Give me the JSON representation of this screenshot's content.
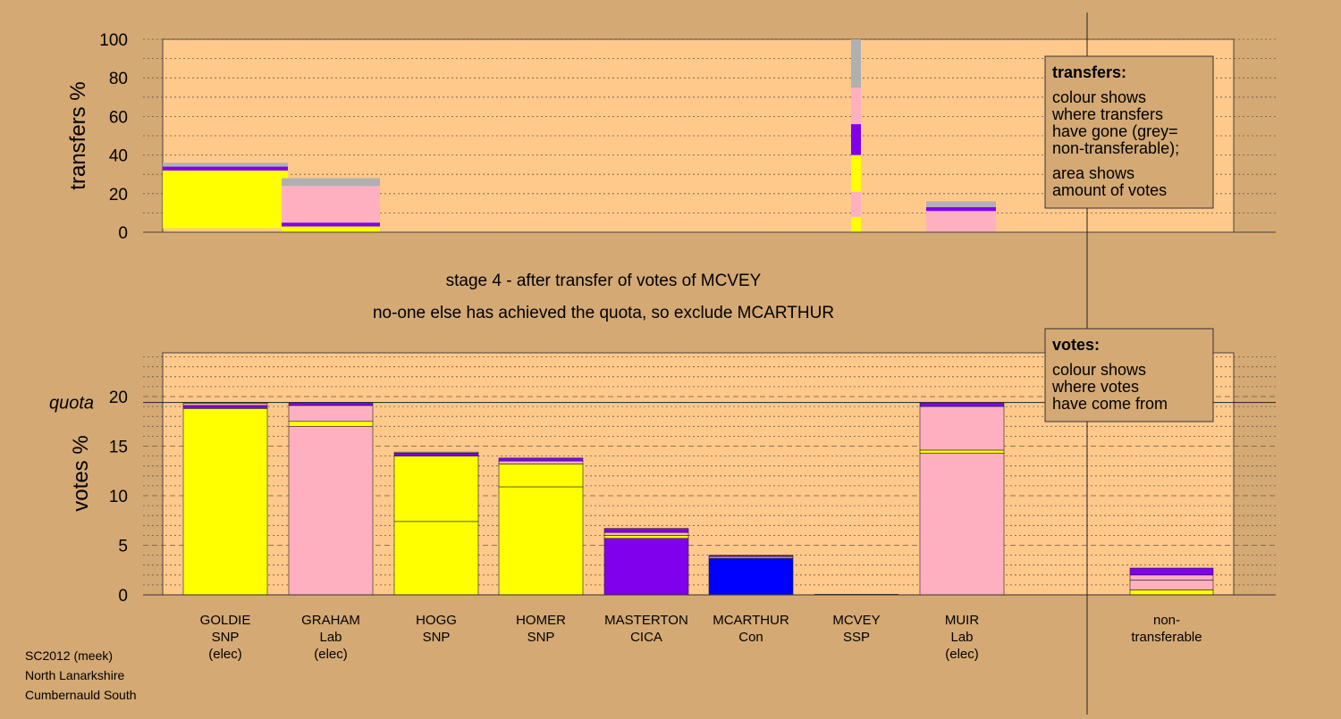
{
  "heading": {
    "stage_line": "stage 4 - after transfer of votes of MCVEY",
    "decision_line": "no-one else has achieved the quota, so exclude MCARTHUR"
  },
  "footer": {
    "lines": [
      "SC2012 (meek)",
      "North Lanarkshire",
      "Cumbernauld South"
    ]
  },
  "colors": {
    "snp_yellow": "#ffff00",
    "lab_pink": "#ffb0c0",
    "cica_purple": "#8000ee",
    "con_blue": "#0000ff",
    "grey": "#b0b0b0",
    "panel": "#ffc98c",
    "background": "#d4a974"
  },
  "chart_data": [
    {
      "type": "bar",
      "ylabel": "transfers %",
      "ylim": [
        0,
        100
      ],
      "yticks": [
        0,
        20,
        40,
        60,
        80,
        100
      ],
      "legend": {
        "title": "transfers:",
        "lines": [
          "colour shows",
          "where transfers",
          "have gone (grey=",
          "non-transferable);",
          "area shows",
          "amount of votes"
        ]
      },
      "columns": [
        {
          "candidate": "GOLDIE",
          "segments": [
            {
              "color": "yellow",
              "from": 2,
              "to": 32
            },
            {
              "color": "purple",
              "from": 32,
              "to": 34
            },
            {
              "color": "grey",
              "from": 34,
              "to": 36
            }
          ]
        },
        {
          "candidate": "GRAHAM",
          "segments": [
            {
              "color": "yellow",
              "from": 0,
              "to": 3
            },
            {
              "color": "purple",
              "from": 3,
              "to": 5
            },
            {
              "color": "pink",
              "from": 5,
              "to": 24
            },
            {
              "color": "grey",
              "from": 24,
              "to": 28
            }
          ]
        },
        {
          "candidate": "MCVEY",
          "segments": [
            {
              "color": "yellow",
              "from": 0,
              "to": 8
            },
            {
              "color": "pink",
              "from": 8,
              "to": 21
            },
            {
              "color": "yellow",
              "from": 21,
              "to": 40
            },
            {
              "color": "purple",
              "from": 40,
              "to": 56
            },
            {
              "color": "pink",
              "from": 56,
              "to": 75
            },
            {
              "color": "grey",
              "from": 75,
              "to": 100
            }
          ]
        },
        {
          "candidate": "MUIR",
          "segments": [
            {
              "color": "pink",
              "from": 0,
              "to": 11
            },
            {
              "color": "purple",
              "from": 11,
              "to": 13
            },
            {
              "color": "grey",
              "from": 13,
              "to": 16
            }
          ]
        }
      ]
    },
    {
      "type": "bar",
      "ylabel": "votes %",
      "quota_label": "quota",
      "quota": 19.4,
      "ylim": [
        0,
        25
      ],
      "yticks": [
        0,
        5,
        10,
        15,
        20
      ],
      "legend": {
        "title": "votes:",
        "lines": [
          "colour shows",
          "where votes",
          "have come from"
        ]
      },
      "categories": [
        {
          "name": "GOLDIE",
          "party": "SNP",
          "note": "(elec)",
          "segments": [
            {
              "color": "yellow",
              "from": 0,
              "to": 18.8
            },
            {
              "color": "purple",
              "from": 18.8,
              "to": 19.1
            },
            {
              "color": "pink",
              "from": 19.1,
              "to": 19.3
            },
            {
              "color": "grey",
              "from": 19.3,
              "to": 19.4
            }
          ]
        },
        {
          "name": "GRAHAM",
          "party": "Lab",
          "note": "(elec)",
          "segments": [
            {
              "color": "pink",
              "from": 0,
              "to": 17.0
            },
            {
              "color": "yellow",
              "from": 17.0,
              "to": 17.5
            },
            {
              "color": "pink",
              "from": 17.5,
              "to": 19.1
            },
            {
              "color": "purple",
              "from": 19.1,
              "to": 19.4
            }
          ]
        },
        {
          "name": "HOGG",
          "party": "SNP",
          "note": "",
          "segments": [
            {
              "color": "yellow",
              "from": 0,
              "to": 7.4
            },
            {
              "color": "yellow",
              "from": 7.4,
              "to": 14.0
            },
            {
              "color": "purple",
              "from": 14.0,
              "to": 14.3
            },
            {
              "color": "pink",
              "from": 14.3,
              "to": 14.4
            }
          ]
        },
        {
          "name": "HOMER",
          "party": "SNP",
          "note": "",
          "segments": [
            {
              "color": "yellow",
              "from": 0,
              "to": 10.9
            },
            {
              "color": "yellow",
              "from": 10.9,
              "to": 13.2
            },
            {
              "color": "pink",
              "from": 13.2,
              "to": 13.5
            },
            {
              "color": "purple",
              "from": 13.5,
              "to": 13.8
            }
          ]
        },
        {
          "name": "MASTERTON",
          "party": "CICA",
          "note": "",
          "segments": [
            {
              "color": "purple",
              "from": 0,
              "to": 5.7
            },
            {
              "color": "yellow",
              "from": 5.7,
              "to": 6.0
            },
            {
              "color": "pink",
              "from": 6.0,
              "to": 6.3
            },
            {
              "color": "purple",
              "from": 6.3,
              "to": 6.7
            }
          ]
        },
        {
          "name": "MCARTHUR",
          "party": "Con",
          "note": "",
          "segments": [
            {
              "color": "blue",
              "from": 0,
              "to": 3.7
            },
            {
              "color": "yellow",
              "from": 3.7,
              "to": 3.85
            },
            {
              "color": "purple",
              "from": 3.85,
              "to": 4.0
            }
          ]
        },
        {
          "name": "MCVEY",
          "party": "SSP",
          "note": "",
          "segments": []
        },
        {
          "name": "MUIR",
          "party": "Lab",
          "note": "(elec)",
          "segments": [
            {
              "color": "pink",
              "from": 0,
              "to": 14.3
            },
            {
              "color": "yellow",
              "from": 14.3,
              "to": 14.6
            },
            {
              "color": "pink",
              "from": 14.6,
              "to": 19.0
            },
            {
              "color": "purple",
              "from": 19.0,
              "to": 19.4
            }
          ]
        },
        {
          "name": "non-",
          "party": "transferable",
          "note": "",
          "segments": [
            {
              "color": "yellow",
              "from": 0,
              "to": 0.5
            },
            {
              "color": "pink",
              "from": 0.5,
              "to": 1.5
            },
            {
              "color": "pink",
              "from": 1.5,
              "to": 2.0
            },
            {
              "color": "purple",
              "from": 2.0,
              "to": 2.7
            }
          ]
        }
      ]
    }
  ]
}
